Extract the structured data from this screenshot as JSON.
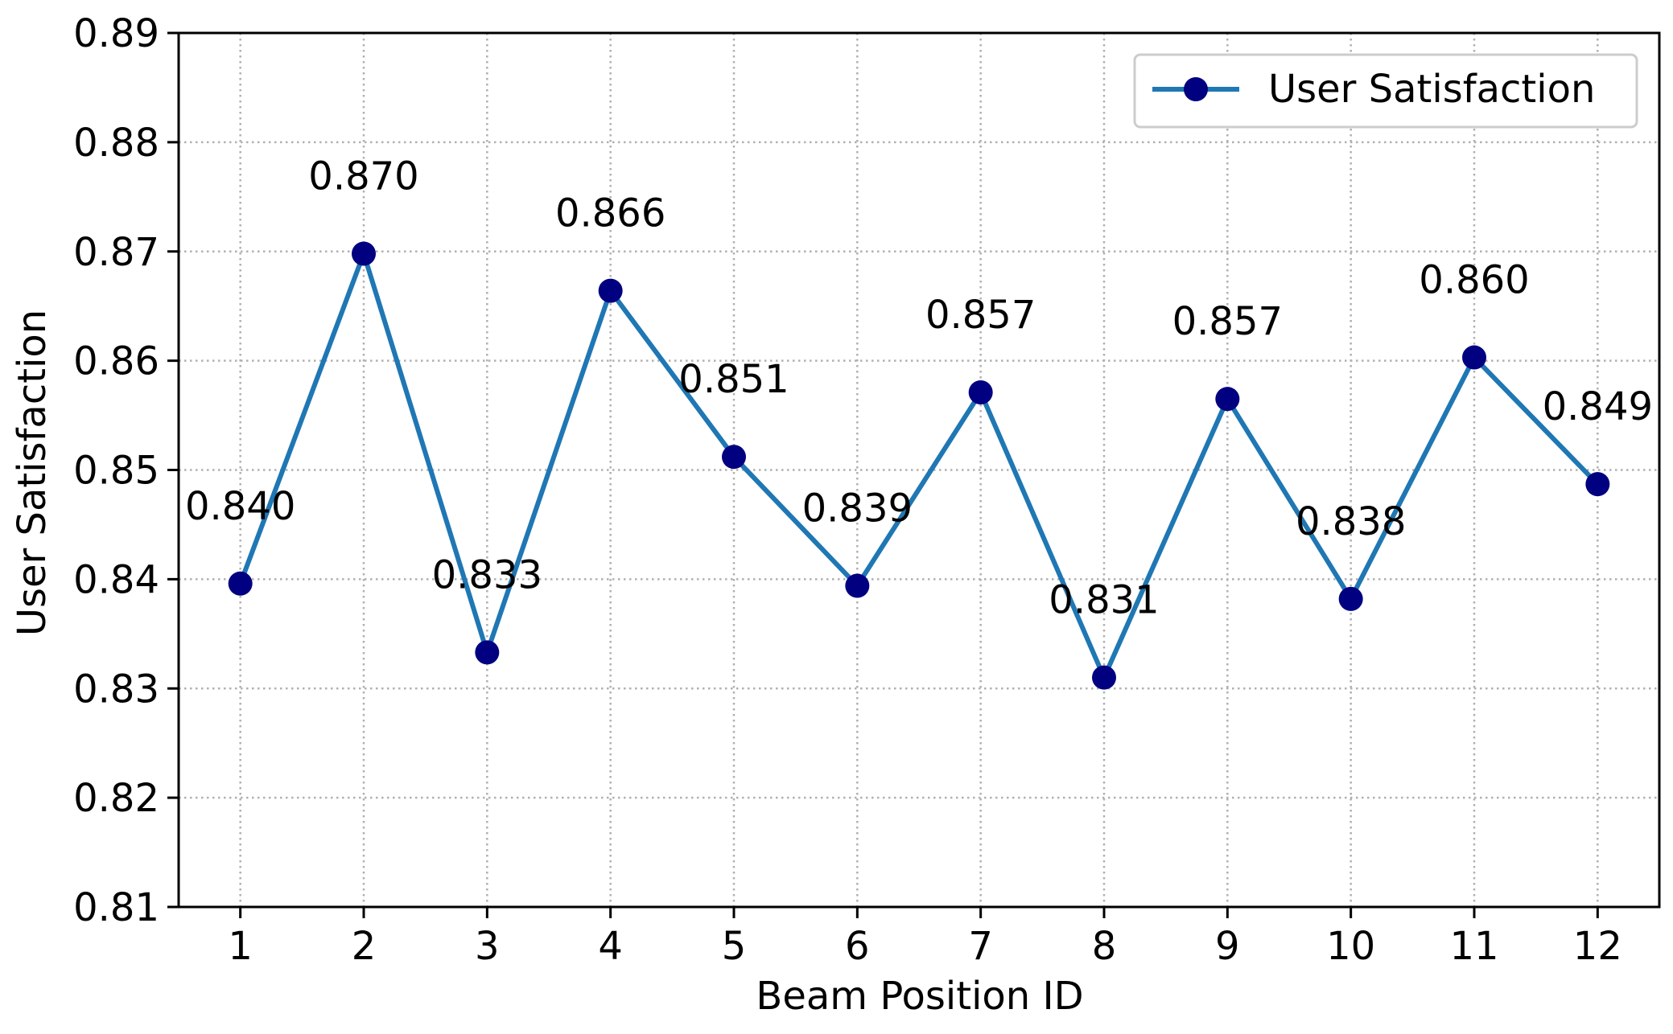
{
  "chart_data": {
    "type": "line",
    "title": "",
    "xlabel": "Beam Position ID",
    "ylabel": "User Satisfaction",
    "x": [
      1,
      2,
      3,
      4,
      5,
      6,
      7,
      8,
      9,
      10,
      11,
      12
    ],
    "xticks": [
      "1",
      "2",
      "3",
      "4",
      "5",
      "6",
      "7",
      "8",
      "9",
      "10",
      "11",
      "12"
    ],
    "xlim": [
      0.5,
      12.5
    ],
    "ylim": [
      0.81,
      0.89
    ],
    "yticks": [
      "0.81",
      "0.82",
      "0.83",
      "0.84",
      "0.85",
      "0.86",
      "0.87",
      "0.88",
      "0.89"
    ],
    "ytick_values": [
      0.81,
      0.82,
      0.83,
      0.84,
      0.85,
      0.86,
      0.87,
      0.88,
      0.89
    ],
    "series": [
      {
        "name": "User Satisfaction",
        "values": [
          0.8396,
          0.8698,
          0.8333,
          0.8664,
          0.8512,
          0.8394,
          0.8571,
          0.831,
          0.8565,
          0.8382,
          0.8603,
          0.8487
        ],
        "data_labels": [
          "0.840",
          "0.870",
          "0.833",
          "0.866",
          "0.851",
          "0.839",
          "0.857",
          "0.831",
          "0.857",
          "0.838",
          "0.860",
          "0.849"
        ],
        "line_color": "#1f77b4",
        "marker_color": "#000080"
      }
    ],
    "grid": true,
    "grid_style": "dotted",
    "legend_position": "top-right",
    "legend": [
      "User Satisfaction"
    ]
  }
}
